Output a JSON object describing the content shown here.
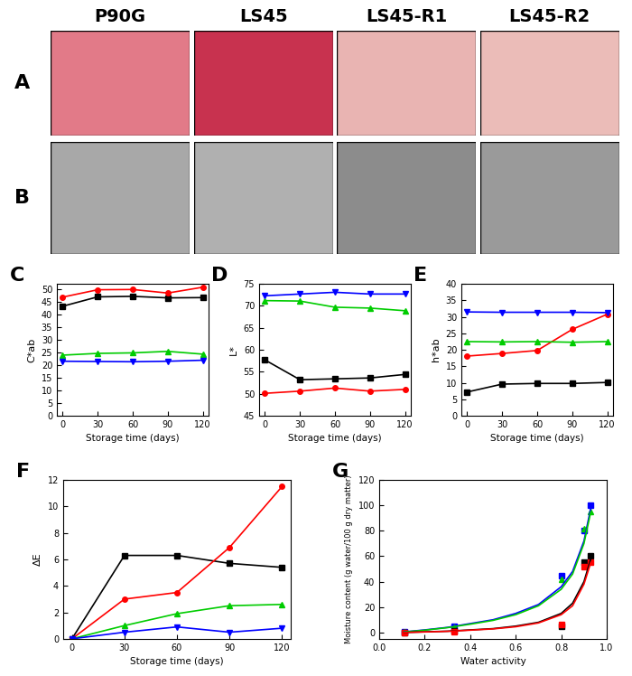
{
  "images": {
    "columns": [
      "P90G",
      "LS45",
      "LS45-R1",
      "LS45-R2"
    ],
    "rows": [
      "A",
      "B"
    ]
  },
  "chart_data": [
    {
      "panel": "C",
      "type": "line",
      "xlabel": "Storage time (days)",
      "ylabel": "C*ab",
      "x": [
        0,
        30,
        60,
        90,
        120
      ],
      "xlim": [
        -5,
        125
      ],
      "xticks": [
        0,
        30,
        60,
        90,
        120
      ],
      "ylim": [
        0,
        52
      ],
      "yticks": [
        0,
        5,
        10,
        15,
        20,
        25,
        30,
        35,
        40,
        45,
        50
      ],
      "series": [
        {
          "color": "#000000",
          "marker": "square",
          "values": [
            43.2,
            46.9,
            47.1,
            46.5,
            46.6
          ]
        },
        {
          "color": "#ff0000",
          "marker": "circle",
          "values": [
            46.8,
            49.7,
            49.8,
            48.4,
            50.7
          ]
        },
        {
          "color": "#00cc00",
          "marker": "triangle_up",
          "values": [
            23.9,
            24.6,
            24.8,
            25.4,
            24.3
          ]
        },
        {
          "color": "#0000ff",
          "marker": "triangle_down",
          "values": [
            21.5,
            21.4,
            21.3,
            21.5,
            21.9
          ]
        }
      ]
    },
    {
      "panel": "D",
      "type": "line",
      "xlabel": "Storage time (days)",
      "ylabel": "L*",
      "x": [
        0,
        30,
        60,
        90,
        120
      ],
      "xlim": [
        -5,
        125
      ],
      "xticks": [
        0,
        30,
        60,
        90,
        120
      ],
      "ylim": [
        45,
        75
      ],
      "yticks": [
        45,
        50,
        55,
        60,
        65,
        70,
        75
      ],
      "series": [
        {
          "color": "#000000",
          "marker": "square",
          "values": [
            57.7,
            53.2,
            53.4,
            53.6,
            54.4
          ]
        },
        {
          "color": "#ff0000",
          "marker": "circle",
          "values": [
            50.1,
            50.6,
            51.3,
            50.6,
            51.0
          ]
        },
        {
          "color": "#00cc00",
          "marker": "triangle_up",
          "values": [
            71.2,
            71.1,
            69.7,
            69.5,
            68.9
          ]
        },
        {
          "color": "#0000ff",
          "marker": "triangle_down",
          "values": [
            72.3,
            72.7,
            73.1,
            72.7,
            72.7
          ]
        }
      ]
    },
    {
      "panel": "E",
      "type": "line",
      "xlabel": "Storage time (days)",
      "ylabel": "h*ab",
      "x": [
        0,
        30,
        60,
        90,
        120
      ],
      "xlim": [
        -5,
        125
      ],
      "xticks": [
        0,
        30,
        60,
        90,
        120
      ],
      "ylim": [
        0,
        40
      ],
      "yticks": [
        0,
        5,
        10,
        15,
        20,
        25,
        30,
        35,
        40
      ],
      "series": [
        {
          "color": "#000000",
          "marker": "square",
          "values": [
            7.2,
            9.6,
            9.8,
            9.8,
            10.1
          ]
        },
        {
          "color": "#ff0000",
          "marker": "circle",
          "values": [
            18.1,
            18.9,
            19.8,
            26.2,
            30.8
          ]
        },
        {
          "color": "#00cc00",
          "marker": "triangle_up",
          "values": [
            22.5,
            22.4,
            22.5,
            22.3,
            22.5
          ]
        },
        {
          "color": "#0000ff",
          "marker": "triangle_down",
          "values": [
            31.5,
            31.4,
            31.4,
            31.4,
            31.3
          ]
        }
      ]
    },
    {
      "panel": "F",
      "type": "line",
      "xlabel": "Storage time (days)",
      "ylabel": "ΔE",
      "x": [
        0,
        30,
        60,
        90,
        120
      ],
      "xlim": [
        -5,
        125
      ],
      "xticks": [
        0,
        30,
        60,
        90,
        120
      ],
      "ylim": [
        0,
        12
      ],
      "yticks": [
        0,
        2,
        4,
        6,
        8,
        10,
        12
      ],
      "series": [
        {
          "color": "#000000",
          "marker": "square",
          "values": [
            0,
            6.3,
            6.3,
            5.7,
            5.4
          ]
        },
        {
          "color": "#ff0000",
          "marker": "circle",
          "values": [
            0,
            3.0,
            3.5,
            6.9,
            11.5
          ]
        },
        {
          "color": "#00cc00",
          "marker": "triangle_up",
          "values": [
            0,
            1.0,
            1.9,
            2.5,
            2.6
          ]
        },
        {
          "color": "#0000ff",
          "marker": "triangle_down",
          "values": [
            0,
            0.5,
            0.9,
            0.5,
            0.8
          ]
        }
      ]
    },
    {
      "panel": "G",
      "type": "scatter",
      "xlabel": "Water activity",
      "ylabel": "Moisture content (g water/100 g dry matter)",
      "xlim": [
        0,
        1.0
      ],
      "xticks": [
        {
          "value": 0,
          "label": "0.0"
        },
        {
          "value": 0.2,
          "label": "0.2"
        },
        {
          "value": 0.4,
          "label": "0.4"
        },
        {
          "value": 0.6,
          "label": "0.6"
        },
        {
          "value": 0.8,
          "label": "0.8"
        },
        {
          "value": 1.0,
          "label": "1.0"
        }
      ],
      "ylim": [
        -5,
        120
      ],
      "yticks": [
        0,
        20,
        40,
        60,
        80,
        100,
        120
      ],
      "series": [
        {
          "type": "scatter",
          "color": "#0000ff",
          "marker": "square",
          "x": [
            0.11,
            0.33,
            0.8,
            0.9,
            0.93
          ],
          "values": [
            0.5,
            5,
            45,
            80,
            100
          ]
        },
        {
          "type": "scatter",
          "color": "#00cc00",
          "marker": "triangle_up",
          "x": [
            0.11,
            0.33,
            0.8,
            0.9,
            0.93
          ],
          "values": [
            0.3,
            4,
            42,
            82,
            95
          ]
        },
        {
          "type": "scatter",
          "color": "#000000",
          "marker": "square",
          "x": [
            0.11,
            0.33,
            0.8,
            0.9,
            0.93
          ],
          "values": [
            0,
            1,
            5,
            55,
            60
          ]
        },
        {
          "type": "scatter",
          "color": "#ff0000",
          "marker": "square",
          "x": [
            0.11,
            0.33,
            0.8,
            0.9,
            0.93
          ],
          "values": [
            0,
            0.5,
            6,
            52,
            55
          ]
        },
        {
          "type": "line",
          "color": "#0000ff",
          "x": [
            0.11,
            0.2,
            0.3,
            0.4,
            0.5,
            0.6,
            0.7,
            0.8,
            0.85,
            0.9,
            0.93
          ],
          "values": [
            0.5,
            2,
            4,
            7,
            10,
            15,
            22,
            36,
            48,
            72,
            98
          ]
        },
        {
          "type": "line",
          "color": "#00cc00",
          "x": [
            0.11,
            0.2,
            0.3,
            0.4,
            0.5,
            0.6,
            0.7,
            0.8,
            0.85,
            0.9,
            0.93
          ],
          "values": [
            0.4,
            1.8,
            3.8,
            6.5,
            9.5,
            14,
            21,
            34,
            46,
            70,
            95
          ]
        },
        {
          "type": "line",
          "color": "#000000",
          "x": [
            0.11,
            0.2,
            0.3,
            0.4,
            0.5,
            0.6,
            0.7,
            0.8,
            0.85,
            0.9,
            0.93
          ],
          "values": [
            0,
            0.5,
            1,
            2,
            3,
            5,
            8,
            15,
            23,
            40,
            58
          ]
        },
        {
          "type": "line",
          "color": "#ff0000",
          "x": [
            0.11,
            0.2,
            0.3,
            0.4,
            0.5,
            0.6,
            0.7,
            0.8,
            0.85,
            0.9,
            0.93
          ],
          "values": [
            0,
            0.4,
            0.9,
            1.8,
            2.8,
            4.5,
            7.5,
            14,
            21,
            38,
            55
          ]
        }
      ]
    }
  ]
}
